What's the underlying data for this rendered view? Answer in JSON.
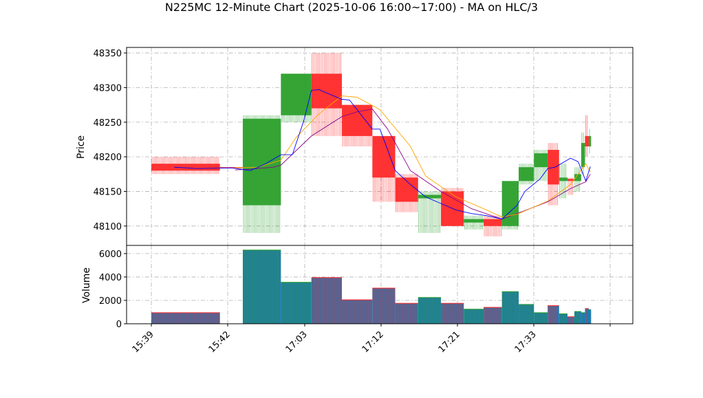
{
  "chart_data": {
    "type": "candlestick",
    "title": "N225MC 12-Minute Chart (2025-10-06 16:00~17:00) - MA on HLC/3",
    "price_panel": {
      "ylabel": "Price",
      "ylim": [
        48072,
        48358
      ],
      "yticks": [
        48100,
        48150,
        48200,
        48250,
        48300,
        48350
      ]
    },
    "volume_panel": {
      "ylabel": "Volume",
      "ylim": [
        0,
        6700
      ],
      "yticks": [
        0,
        2000,
        4000,
        6000
      ]
    },
    "x_tick_labels": [
      "15:39",
      "15:42",
      "17:03",
      "17:12",
      "17:21",
      "17:33"
    ],
    "grid": true,
    "colors": {
      "up": "#2ca02c",
      "down": "#ff2a2a",
      "ma_fast": "#0000ff",
      "ma_mid": "#ffa500",
      "ma_slow": "#8b008b",
      "volume_face": "#1f77b4",
      "volume_edge_down": "#ff2a2a",
      "volume_edge_up": "#2ca02c"
    },
    "candles": [
      {
        "x": 0,
        "w": 9,
        "o": 48190,
        "h": 48200,
        "l": 48175,
        "c": 48180,
        "v": 950
      },
      {
        "x": 9,
        "w": 3,
        "o": 48185,
        "h": 48185,
        "l": 48183,
        "c": 48184,
        "v": 0
      },
      {
        "x": 12,
        "w": 5,
        "o": 48130,
        "h": 48260,
        "l": 48090,
        "c": 48255,
        "v": 6300
      },
      {
        "x": 17,
        "w": 4,
        "o": 48260,
        "h": 48320,
        "l": 48250,
        "c": 48320,
        "v": 3550
      },
      {
        "x": 21,
        "w": 4,
        "o": 48320,
        "h": 48350,
        "l": 48230,
        "c": 48270,
        "v": 3950
      },
      {
        "x": 25,
        "w": 4,
        "o": 48275,
        "h": 48275,
        "l": 48215,
        "c": 48230,
        "v": 2050
      },
      {
        "x": 29,
        "w": 3,
        "o": 48230,
        "h": 48230,
        "l": 48135,
        "c": 48170,
        "v": 3050
      },
      {
        "x": 32,
        "w": 3,
        "o": 48170,
        "h": 48175,
        "l": 48120,
        "c": 48135,
        "v": 1750
      },
      {
        "x": 35,
        "w": 3,
        "o": 48140,
        "h": 48150,
        "l": 48090,
        "c": 48145,
        "v": 2250
      },
      {
        "x": 38,
        "w": 3,
        "o": 48150,
        "h": 48155,
        "l": 48100,
        "c": 48100,
        "v": 1750
      },
      {
        "x": 41,
        "w": 2.6,
        "o": 48105,
        "h": 48115,
        "l": 48095,
        "c": 48110,
        "v": 1250
      },
      {
        "x": 43.6,
        "w": 2.4,
        "o": 48110,
        "h": 48115,
        "l": 48085,
        "c": 48100,
        "v": 1400
      },
      {
        "x": 46,
        "w": 2.2,
        "o": 48100,
        "h": 48165,
        "l": 48095,
        "c": 48165,
        "v": 2750
      },
      {
        "x": 48.2,
        "w": 2,
        "o": 48165,
        "h": 48190,
        "l": 48160,
        "c": 48185,
        "v": 1650
      },
      {
        "x": 50.2,
        "w": 1.8,
        "o": 48185,
        "h": 48210,
        "l": 48165,
        "c": 48205,
        "v": 950
      },
      {
        "x": 52,
        "w": 1.5,
        "o": 48210,
        "h": 48220,
        "l": 48130,
        "c": 48160,
        "v": 1550
      },
      {
        "x": 53.5,
        "w": 1.1,
        "o": 48165,
        "h": 48190,
        "l": 48140,
        "c": 48170,
        "v": 850
      },
      {
        "x": 54.6,
        "w": 0.9,
        "o": 48168,
        "h": 48170,
        "l": 48145,
        "c": 48165,
        "v": 600
      },
      {
        "x": 55.5,
        "w": 0.9,
        "o": 48165,
        "h": 48185,
        "l": 48150,
        "c": 48175,
        "v": 1050
      },
      {
        "x": 56.4,
        "w": 0.5,
        "o": 48185,
        "h": 48235,
        "l": 48175,
        "c": 48220,
        "v": 950
      },
      {
        "x": 56.9,
        "w": 0.5,
        "o": 48230,
        "h": 48260,
        "l": 48200,
        "c": 48215,
        "v": 1300
      },
      {
        "x": 57.4,
        "w": 0.3,
        "o": 48215,
        "h": 48240,
        "l": 48205,
        "c": 48230,
        "v": 1200
      }
    ],
    "ma_fast": [
      [
        3,
        48185
      ],
      [
        6,
        48183
      ],
      [
        10.5,
        48184
      ],
      [
        13,
        48180
      ],
      [
        15,
        48190
      ],
      [
        17,
        48203
      ],
      [
        18.5,
        48203
      ],
      [
        20,
        48252
      ],
      [
        21,
        48296
      ],
      [
        22,
        48297
      ],
      [
        25,
        48283
      ],
      [
        26,
        48282
      ],
      [
        29,
        48240
      ],
      [
        30,
        48240
      ],
      [
        32,
        48180
      ],
      [
        34,
        48160
      ],
      [
        36,
        48142
      ],
      [
        40,
        48123
      ],
      [
        42,
        48118
      ],
      [
        44,
        48115
      ],
      [
        46,
        48110
      ],
      [
        48,
        48130
      ],
      [
        49,
        48150
      ],
      [
        51,
        48168
      ],
      [
        52,
        48183
      ],
      [
        53,
        48185
      ],
      [
        55,
        48198
      ],
      [
        56,
        48193
      ],
      [
        57,
        48165
      ],
      [
        57.6,
        48186
      ]
    ],
    "ma_mid": [
      [
        11,
        48184
      ],
      [
        14,
        48185
      ],
      [
        17,
        48195
      ],
      [
        19,
        48228
      ],
      [
        22,
        48262
      ],
      [
        25,
        48288
      ],
      [
        27,
        48286
      ],
      [
        30,
        48268
      ],
      [
        34,
        48215
      ],
      [
        36,
        48172
      ],
      [
        40,
        48142
      ],
      [
        44,
        48123
      ],
      [
        46,
        48113
      ],
      [
        48,
        48117
      ],
      [
        52,
        48136
      ],
      [
        55,
        48160
      ],
      [
        57,
        48190
      ],
      [
        57.6,
        48178
      ]
    ],
    "ma_slow": [
      [
        11,
        48181
      ],
      [
        13,
        48182
      ],
      [
        16,
        48185
      ],
      [
        17,
        48188
      ],
      [
        21,
        48230
      ],
      [
        25,
        48258
      ],
      [
        27,
        48265
      ],
      [
        29,
        48269
      ],
      [
        31,
        48240
      ],
      [
        34,
        48180
      ],
      [
        38,
        48150
      ],
      [
        42,
        48125
      ],
      [
        46,
        48110
      ],
      [
        48,
        48118
      ],
      [
        52,
        48135
      ],
      [
        55,
        48154
      ],
      [
        57,
        48164
      ],
      [
        57.6,
        48175
      ]
    ]
  }
}
